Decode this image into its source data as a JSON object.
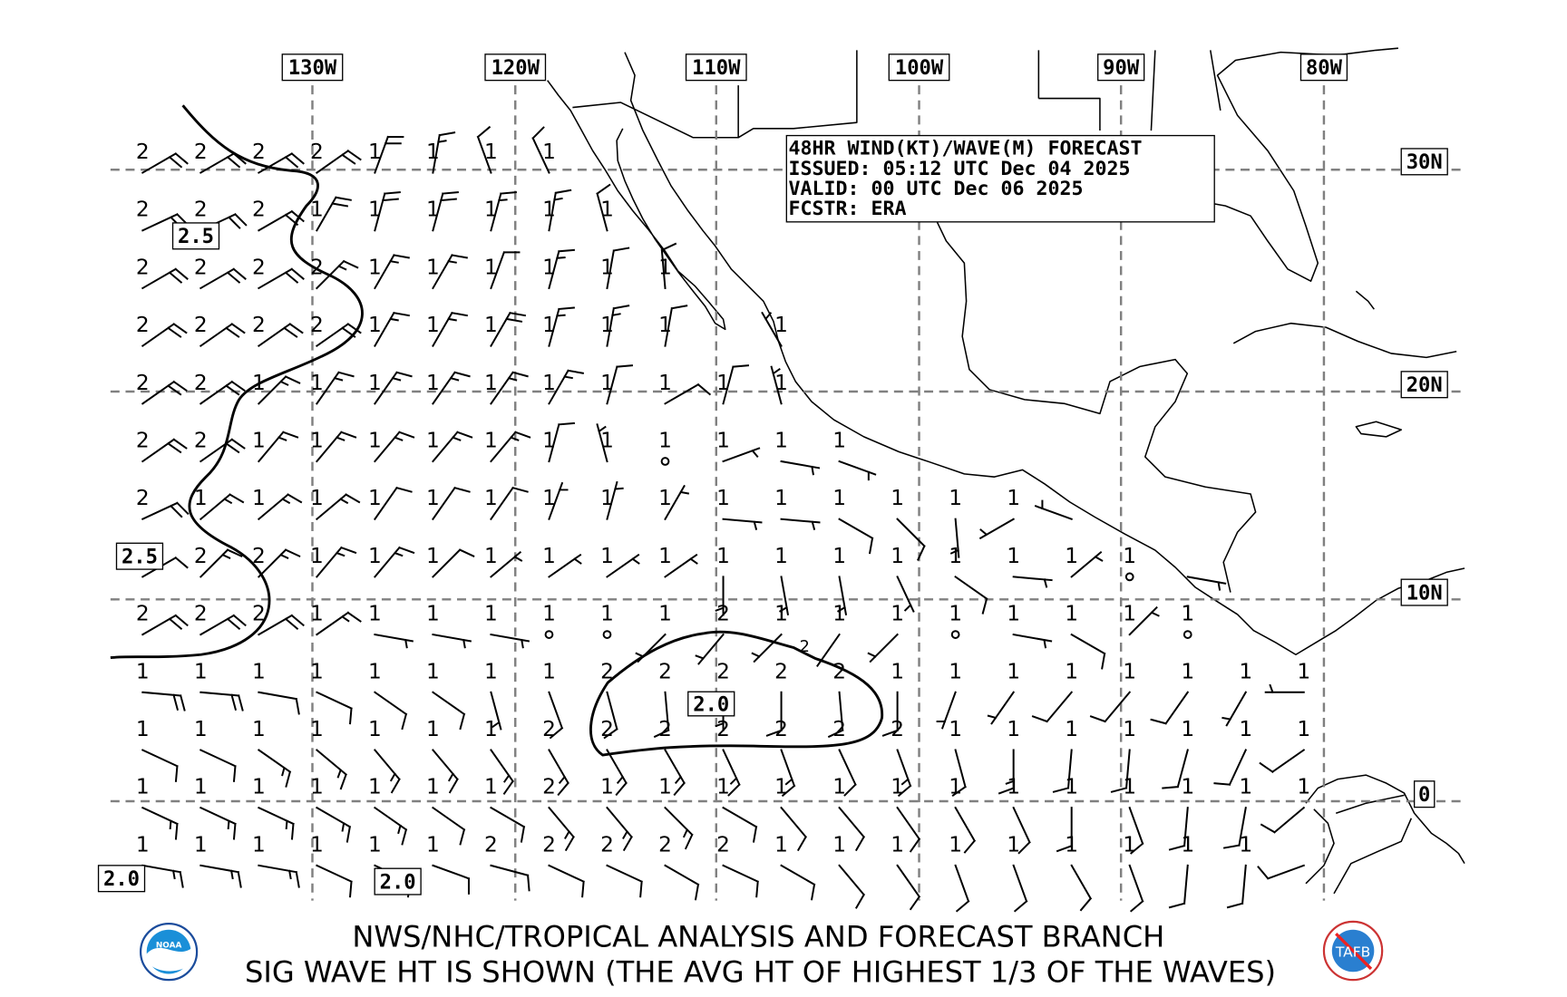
{
  "header": {
    "line1": "48HR WIND(KT)/WAVE(M) FORECAST",
    "line2": "ISSUED: 05:12 UTC Dec 04 2025",
    "line3": "VALID: 00 UTC Dec 06 2025",
    "line4": "FCSTR: ERA"
  },
  "lon_labels": [
    "130W",
    "120W",
    "110W",
    "100W",
    "90W",
    "80W"
  ],
  "lat_labels": [
    "30N",
    "20N",
    "10N",
    "0"
  ],
  "contour_labels": [
    "2.5",
    "2.5",
    "2.0",
    "2.0",
    "2.0",
    "2"
  ],
  "footer": {
    "line1": "NWS/NHC/TROPICAL ANALYSIS AND FORECAST BRANCH",
    "line2": "SIG WAVE HT IS SHOWN (THE AVG HT OF HIGHEST 1/3 OF THE WAVES)"
  },
  "logos": {
    "noaa": "NOAA",
    "tafb": "TAFB"
  },
  "grid": {
    "fields": [
      "wave_m",
      "wind_from_deg",
      "wind_kt"
    ],
    "rows": [
      [
        [
          2,
          60,
          20
        ],
        [
          2,
          60,
          20
        ],
        [
          2,
          60,
          20
        ],
        [
          2,
          55,
          20
        ],
        [
          1,
          20,
          20
        ],
        [
          1,
          10,
          15
        ],
        [
          1,
          340,
          10
        ],
        [
          1,
          335,
          10
        ]
      ],
      [
        [
          2,
          65,
          20
        ],
        [
          2,
          65,
          20
        ],
        [
          2,
          60,
          20
        ],
        [
          1,
          30,
          20
        ],
        [
          1,
          15,
          20
        ],
        [
          1,
          15,
          20
        ],
        [
          1,
          15,
          15
        ],
        [
          1,
          10,
          15
        ],
        [
          1,
          345,
          10
        ]
      ],
      [
        [
          2,
          60,
          20
        ],
        [
          2,
          60,
          20
        ],
        [
          2,
          60,
          20
        ],
        [
          2,
          45,
          15
        ],
        [
          1,
          30,
          15
        ],
        [
          1,
          30,
          15
        ],
        [
          1,
          20,
          10
        ],
        [
          1,
          15,
          15
        ],
        [
          1,
          10,
          10
        ],
        [
          1,
          355,
          10
        ]
      ],
      [
        [
          2,
          55,
          20
        ],
        [
          2,
          55,
          20
        ],
        [
          2,
          55,
          20
        ],
        [
          2,
          55,
          20
        ],
        [
          1,
          30,
          15
        ],
        [
          1,
          30,
          15
        ],
        [
          1,
          30,
          20
        ],
        [
          1,
          15,
          15
        ],
        [
          1,
          10,
          15
        ],
        [
          1,
          10,
          10
        ],
        null,
        [
          1,
          330,
          5
        ]
      ],
      [
        [
          2,
          55,
          20
        ],
        [
          2,
          55,
          20
        ],
        [
          1,
          45,
          15
        ],
        [
          1,
          35,
          15
        ],
        [
          1,
          35,
          15
        ],
        [
          1,
          35,
          15
        ],
        [
          1,
          35,
          15
        ],
        [
          1,
          30,
          15
        ],
        [
          1,
          15,
          10
        ],
        [
          1,
          60,
          10
        ],
        [
          1,
          15,
          10
        ],
        [
          1,
          345,
          5
        ]
      ],
      [
        [
          2,
          55,
          20
        ],
        [
          2,
          55,
          20
        ],
        [
          1,
          40,
          15
        ],
        [
          1,
          40,
          15
        ],
        [
          1,
          40,
          15
        ],
        [
          1,
          40,
          15
        ],
        [
          1,
          40,
          15
        ],
        [
          1,
          15,
          10
        ],
        [
          1,
          345,
          5
        ],
        [
          1,
          0,
          0
        ],
        [
          1,
          70,
          5
        ],
        [
          1,
          100,
          5
        ],
        [
          1,
          110,
          5
        ]
      ],
      [
        [
          2,
          65,
          20
        ],
        [
          1,
          50,
          15
        ],
        [
          1,
          50,
          15
        ],
        [
          1,
          50,
          15
        ],
        [
          1,
          35,
          10
        ],
        [
          1,
          35,
          10
        ],
        [
          1,
          35,
          10
        ],
        [
          1,
          20,
          5
        ],
        [
          1,
          15,
          5
        ],
        [
          1,
          30,
          5
        ],
        [
          1,
          95,
          5
        ],
        [
          1,
          95,
          5
        ],
        [
          1,
          120,
          10
        ],
        [
          1,
          135,
          10
        ],
        [
          1,
          175,
          5
        ],
        [
          1,
          240,
          5
        ],
        [
          null,
          290,
          5
        ]
      ],
      [
        [
          null,
          60,
          10
        ],
        [
          2,
          45,
          15
        ],
        [
          2,
          45,
          15
        ],
        [
          1,
          40,
          15
        ],
        [
          1,
          40,
          15
        ],
        [
          1,
          45,
          10
        ],
        [
          1,
          50,
          5
        ],
        [
          1,
          55,
          5
        ],
        [
          1,
          55,
          5
        ],
        [
          1,
          55,
          5
        ],
        [
          1,
          180,
          5
        ],
        [
          1,
          170,
          5
        ],
        [
          1,
          170,
          5
        ],
        [
          1,
          155,
          5
        ],
        [
          1,
          125,
          10
        ],
        [
          1,
          95,
          5
        ],
        [
          1,
          50,
          5
        ],
        [
          1,
          0,
          0
        ],
        [
          null,
          100,
          5
        ]
      ],
      [
        [
          2,
          60,
          20
        ],
        [
          2,
          60,
          20
        ],
        [
          2,
          60,
          20
        ],
        [
          1,
          55,
          15
        ],
        [
          1,
          100,
          5
        ],
        [
          1,
          100,
          5
        ],
        [
          1,
          100,
          5
        ],
        [
          1,
          0,
          0
        ],
        [
          1,
          0,
          0
        ],
        [
          1,
          225,
          5
        ],
        [
          2,
          220,
          5
        ],
        [
          1,
          225,
          5
        ],
        [
          1,
          215,
          5
        ],
        [
          1,
          225,
          5
        ],
        [
          1,
          0,
          0
        ],
        [
          1,
          100,
          5
        ],
        [
          1,
          120,
          10
        ],
        [
          1,
          45,
          5
        ],
        [
          1,
          0,
          0
        ]
      ],
      [
        [
          1,
          95,
          20
        ],
        [
          1,
          95,
          20
        ],
        [
          1,
          100,
          10
        ],
        [
          1,
          115,
          10
        ],
        [
          1,
          125,
          10
        ],
        [
          1,
          125,
          10
        ],
        [
          1,
          165,
          5
        ],
        [
          1,
          160,
          10
        ],
        [
          2,
          165,
          10
        ],
        [
          2,
          175,
          10
        ],
        [
          2,
          180,
          5
        ],
        [
          2,
          180,
          10
        ],
        [
          2,
          175,
          10
        ],
        [
          1,
          180,
          10
        ],
        [
          1,
          200,
          5
        ],
        [
          1,
          215,
          5
        ],
        [
          1,
          220,
          10
        ],
        [
          1,
          220,
          10
        ],
        [
          1,
          215,
          10
        ],
        [
          1,
          210,
          5
        ],
        [
          1,
          270,
          5
        ]
      ],
      [
        [
          1,
          115,
          10
        ],
        [
          1,
          115,
          10
        ],
        [
          1,
          125,
          15
        ],
        [
          1,
          130,
          15
        ],
        [
          1,
          140,
          15
        ],
        [
          1,
          140,
          15
        ],
        [
          1,
          145,
          15
        ],
        [
          2,
          150,
          15
        ],
        [
          2,
          150,
          15
        ],
        [
          2,
          150,
          15
        ],
        [
          2,
          155,
          15
        ],
        [
          2,
          160,
          15
        ],
        [
          2,
          155,
          10
        ],
        [
          2,
          160,
          15
        ],
        [
          1,
          165,
          10
        ],
        [
          1,
          180,
          15
        ],
        [
          1,
          185,
          10
        ],
        [
          1,
          185,
          10
        ],
        [
          1,
          195,
          10
        ],
        [
          1,
          205,
          10
        ],
        [
          1,
          235,
          10
        ]
      ],
      [
        [
          1,
          115,
          15
        ],
        [
          1,
          115,
          15
        ],
        [
          1,
          115,
          15
        ],
        [
          1,
          120,
          15
        ],
        [
          1,
          125,
          15
        ],
        [
          1,
          125,
          10
        ],
        [
          1,
          120,
          10
        ],
        [
          2,
          140,
          15
        ],
        [
          1,
          140,
          15
        ],
        [
          1,
          135,
          15
        ],
        [
          1,
          120,
          10
        ],
        [
          1,
          140,
          10
        ],
        [
          1,
          140,
          10
        ],
        [
          1,
          145,
          10
        ],
        [
          1,
          150,
          10
        ],
        [
          1,
          155,
          10
        ],
        [
          1,
          180,
          10
        ],
        [
          1,
          160,
          10
        ],
        [
          1,
          185,
          10
        ],
        [
          1,
          190,
          10
        ],
        [
          1,
          230,
          10
        ]
      ],
      [
        [
          1,
          100,
          15
        ],
        [
          1,
          100,
          15
        ],
        [
          1,
          100,
          15
        ],
        [
          1,
          115,
          10
        ],
        [
          1,
          115,
          10
        ],
        [
          1,
          110,
          10
        ],
        [
          2,
          105,
          10
        ],
        [
          2,
          115,
          10
        ],
        [
          2,
          115,
          10
        ],
        [
          2,
          120,
          10
        ],
        [
          2,
          115,
          10
        ],
        [
          1,
          120,
          10
        ],
        [
          1,
          140,
          10
        ],
        [
          1,
          145,
          10
        ],
        [
          1,
          160,
          10
        ],
        [
          1,
          160,
          10
        ],
        [
          1,
          150,
          10
        ],
        [
          1,
          160,
          10
        ],
        [
          1,
          185,
          10
        ],
        [
          1,
          185,
          10
        ],
        [
          null,
          250,
          10
        ]
      ]
    ]
  }
}
